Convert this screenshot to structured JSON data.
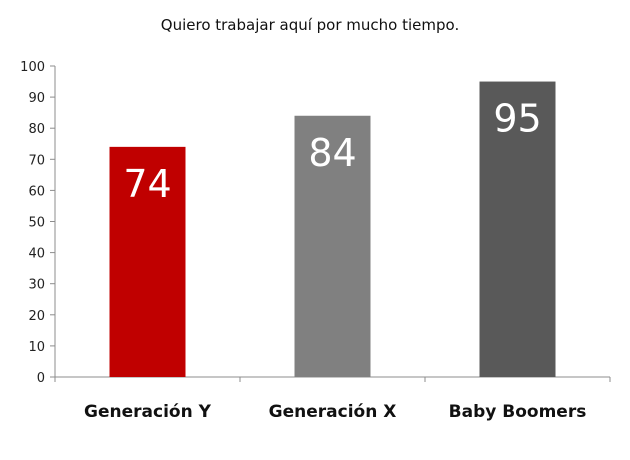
{
  "chart_data": {
    "type": "bar",
    "title": "Quiero trabajar aquí por mucho tiempo.",
    "categories": [
      "Generación Y",
      "Generación X",
      "Baby Boomers"
    ],
    "values": [
      74,
      84,
      95
    ],
    "data_labels": [
      "74",
      "84",
      "95"
    ],
    "bar_colors": [
      "#c00000",
      "#808080",
      "#595959"
    ],
    "ylim": [
      0,
      100
    ],
    "yticks": [
      0,
      10,
      20,
      30,
      40,
      50,
      60,
      70,
      80,
      90,
      100
    ],
    "ytick_labels": [
      "0",
      "10",
      "20",
      "30",
      "40",
      "50",
      "60",
      "70",
      "80",
      "90",
      "100"
    ],
    "xlabel": "",
    "ylabel": "",
    "grid": false,
    "legend": "none"
  }
}
